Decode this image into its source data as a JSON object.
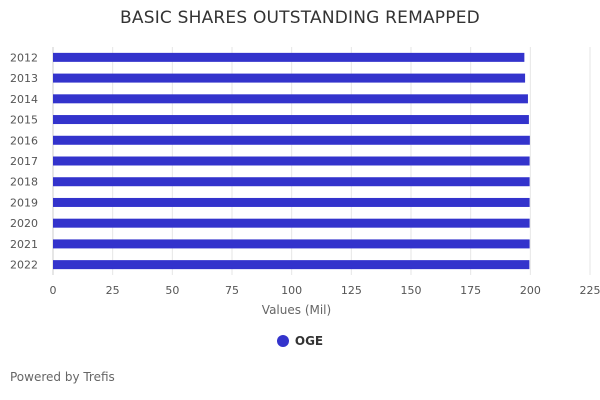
{
  "title": "BASIC SHARES OUTSTANDING REMAPPED",
  "footer": "Powered by Trefis",
  "colors": {
    "bar": "#3333cc",
    "grid": "#e6e6e6"
  },
  "chart_data": {
    "type": "bar",
    "orientation": "horizontal",
    "title": "BASIC SHARES OUTSTANDING REMAPPED",
    "xlabel": "Values (Mil)",
    "ylabel": "",
    "xlim": [
      0,
      225
    ],
    "x_ticks": [
      0,
      25,
      50,
      75,
      100,
      125,
      150,
      175,
      200,
      225
    ],
    "grid": true,
    "legend_position": "bottom",
    "categories": [
      "2012",
      "2013",
      "2014",
      "2015",
      "2016",
      "2017",
      "2018",
      "2019",
      "2020",
      "2021",
      "2022"
    ],
    "series": [
      {
        "name": "OGE",
        "color": "#3333cc",
        "values": [
          197.5,
          197.8,
          199.0,
          199.4,
          199.8,
          199.7,
          199.7,
          199.7,
          199.7,
          199.7,
          199.6
        ]
      }
    ]
  }
}
